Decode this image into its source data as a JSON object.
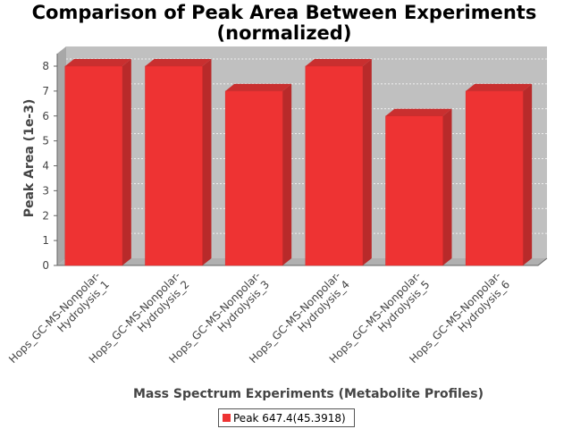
{
  "chart_data": {
    "type": "bar",
    "title_lines": [
      "Comparison of Peak Area Between Experiments",
      "(normalized)"
    ],
    "xlabel": "Mass Spectrum Experiments (Metabolite Profiles)",
    "ylabel": "Peak Area (1e-3)",
    "ylim": [
      0,
      8
    ],
    "yticks": [
      "0",
      "1",
      "2",
      "3",
      "4",
      "5",
      "6",
      "7",
      "8"
    ],
    "categories": [
      [
        "Hops_GC-MS-Nonpolar-",
        "Hydrolysis_1"
      ],
      [
        "Hops_GC-MS-Nonpolar-",
        "Hydrolysis_2"
      ],
      [
        "Hops_GC-MS-Nonpolar-",
        "Hydrolysis_3"
      ],
      [
        "Hops_GC-MS-Nonpolar-",
        "Hydrolysis_4"
      ],
      [
        "Hops_GC-MS-Nonpolar-",
        "Hydrolysis_5"
      ],
      [
        "Hops_GC-MS-Nonpolar-",
        "Hydrolysis_6"
      ]
    ],
    "series": [
      {
        "name": "Peak 647.4(45.3918)",
        "color": "#ee3333",
        "values": [
          8,
          8,
          7,
          8,
          6,
          7
        ]
      }
    ],
    "grid": true,
    "legend_position": "bottom-center",
    "plot_background": "#c0c0c0"
  }
}
